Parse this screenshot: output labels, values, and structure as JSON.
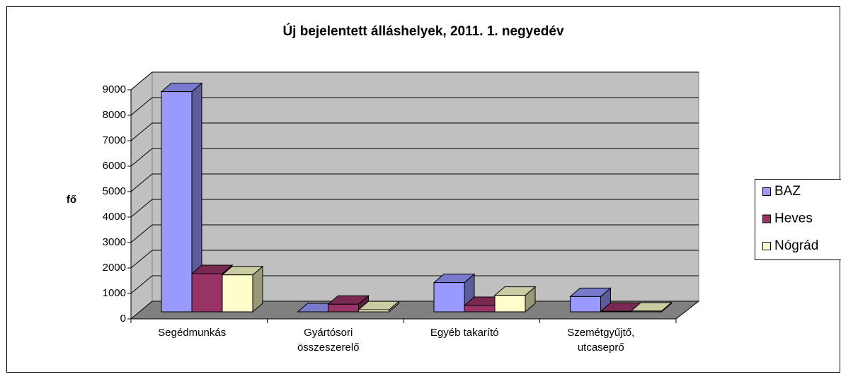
{
  "chart_data": {
    "type": "bar3d",
    "title": "Új bejelentett álláshelyek, 2011. 1. negyedév",
    "y_label": "fő",
    "categories": [
      "Segédmunkás",
      "Gyártósori összeszerelő",
      "Egyéb takarító",
      "Szemétgyűjtő, utcaseprő"
    ],
    "series": [
      {
        "name": "BAZ",
        "color": "#9999FF",
        "values": [
          8650,
          0,
          1150,
          600
        ]
      },
      {
        "name": "Heves",
        "color": "#993366",
        "values": [
          1500,
          300,
          250,
          20
        ]
      },
      {
        "name": "Nógrád",
        "color": "#FFFFCC",
        "values": [
          1450,
          80,
          650,
          30
        ]
      }
    ],
    "ylim": [
      0,
      9000
    ],
    "yticks": [
      0,
      1000,
      2000,
      3000,
      4000,
      5000,
      6000,
      7000,
      8000,
      9000
    ],
    "grid": true,
    "legend": "right"
  }
}
